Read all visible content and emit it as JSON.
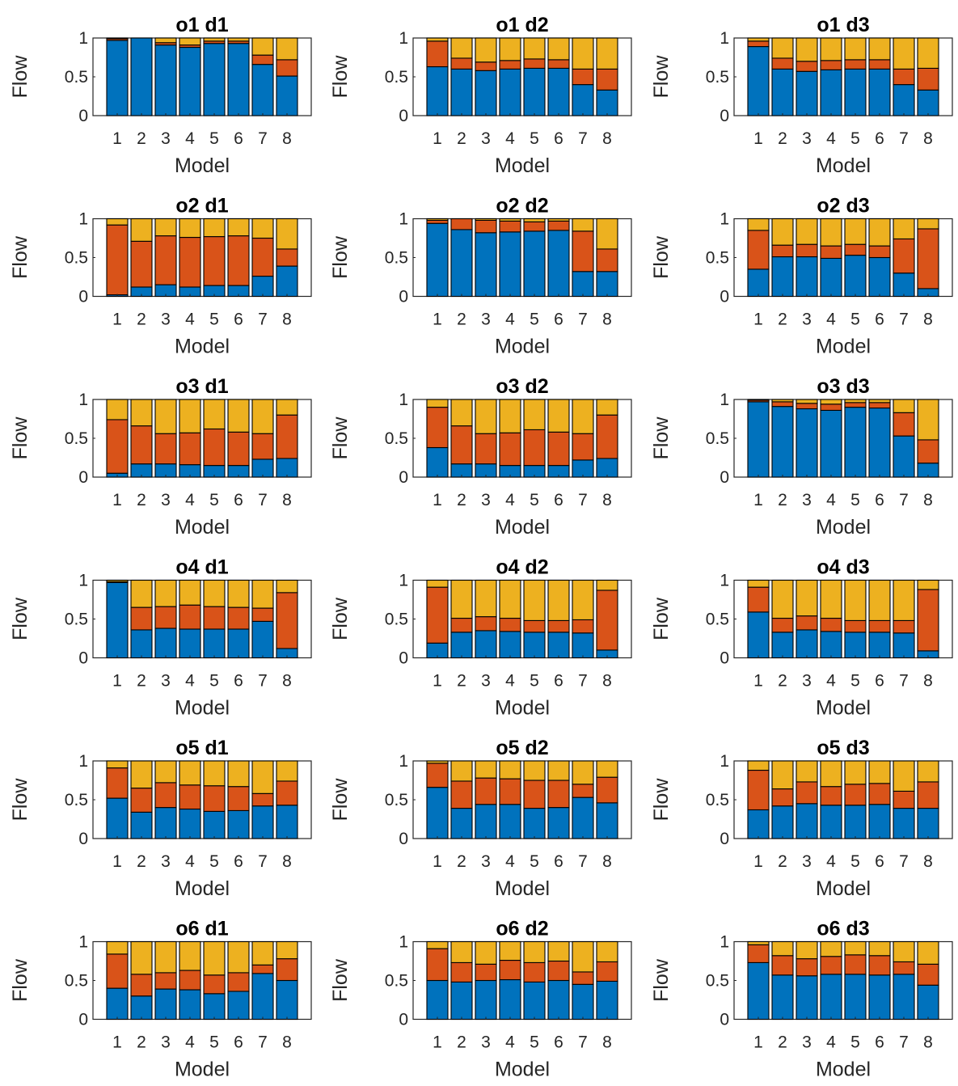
{
  "colors": {
    "blue": "#0072BD",
    "orange": "#D95319",
    "yellow": "#EDB120",
    "axis": "#262626"
  },
  "chart_data": [
    {
      "type": "bar",
      "stacked": true,
      "title": "o1 d1",
      "xlabel": "Model",
      "ylabel": "Flow",
      "categories": [
        "1",
        "2",
        "3",
        "4",
        "5",
        "6",
        "7",
        "8"
      ],
      "ylim": [
        0,
        1
      ],
      "yticks": [
        "0",
        "0.5",
        "1"
      ],
      "series": [
        {
          "values": [
            0.97,
            1.0,
            0.91,
            0.88,
            0.93,
            0.93,
            0.66,
            0.51
          ]
        },
        {
          "values": [
            0.02,
            0.0,
            0.03,
            0.03,
            0.03,
            0.03,
            0.12,
            0.21
          ]
        },
        {
          "values": [
            0.01,
            0.0,
            0.06,
            0.09,
            0.04,
            0.04,
            0.22,
            0.28
          ]
        }
      ]
    },
    {
      "type": "bar",
      "stacked": true,
      "title": "o1 d2",
      "xlabel": "Model",
      "ylabel": "Flow",
      "categories": [
        "1",
        "2",
        "3",
        "4",
        "5",
        "6",
        "7",
        "8"
      ],
      "ylim": [
        0,
        1
      ],
      "yticks": [
        "0",
        "0.5",
        "1"
      ],
      "series": [
        {
          "values": [
            0.63,
            0.6,
            0.58,
            0.6,
            0.61,
            0.61,
            0.4,
            0.33
          ]
        },
        {
          "values": [
            0.33,
            0.14,
            0.11,
            0.11,
            0.12,
            0.11,
            0.2,
            0.27
          ]
        },
        {
          "values": [
            0.04,
            0.26,
            0.31,
            0.29,
            0.27,
            0.28,
            0.4,
            0.4
          ]
        }
      ]
    },
    {
      "type": "bar",
      "stacked": true,
      "title": "o1 d3",
      "xlabel": "Model",
      "ylabel": "Flow",
      "categories": [
        "1",
        "2",
        "3",
        "4",
        "5",
        "6",
        "7",
        "8"
      ],
      "ylim": [
        0,
        1
      ],
      "yticks": [
        "0",
        "0.5",
        "1"
      ],
      "series": [
        {
          "values": [
            0.89,
            0.6,
            0.57,
            0.59,
            0.6,
            0.6,
            0.4,
            0.33
          ]
        },
        {
          "values": [
            0.07,
            0.14,
            0.13,
            0.12,
            0.12,
            0.12,
            0.2,
            0.28
          ]
        },
        {
          "values": [
            0.04,
            0.26,
            0.3,
            0.29,
            0.28,
            0.28,
            0.4,
            0.39
          ]
        }
      ]
    },
    {
      "type": "bar",
      "stacked": true,
      "title": "o2 d1",
      "xlabel": "Model",
      "ylabel": "Flow",
      "categories": [
        "1",
        "2",
        "3",
        "4",
        "5",
        "6",
        "7",
        "8"
      ],
      "ylim": [
        0,
        1
      ],
      "yticks": [
        "0",
        "0.5",
        "1"
      ],
      "series": [
        {
          "values": [
            0.02,
            0.12,
            0.15,
            0.12,
            0.14,
            0.14,
            0.26,
            0.39
          ]
        },
        {
          "values": [
            0.9,
            0.59,
            0.63,
            0.64,
            0.63,
            0.64,
            0.49,
            0.22
          ]
        },
        {
          "values": [
            0.08,
            0.29,
            0.22,
            0.24,
            0.23,
            0.22,
            0.25,
            0.39
          ]
        }
      ]
    },
    {
      "type": "bar",
      "stacked": true,
      "title": "o2 d2",
      "xlabel": "Model",
      "ylabel": "Flow",
      "categories": [
        "1",
        "2",
        "3",
        "4",
        "5",
        "6",
        "7",
        "8"
      ],
      "ylim": [
        0,
        1
      ],
      "yticks": [
        "0",
        "0.5",
        "1"
      ],
      "series": [
        {
          "values": [
            0.94,
            0.86,
            0.82,
            0.83,
            0.84,
            0.85,
            0.32,
            0.32
          ]
        },
        {
          "values": [
            0.04,
            0.14,
            0.16,
            0.14,
            0.12,
            0.12,
            0.52,
            0.29
          ]
        },
        {
          "values": [
            0.02,
            0.0,
            0.02,
            0.03,
            0.04,
            0.03,
            0.16,
            0.39
          ]
        }
      ]
    },
    {
      "type": "bar",
      "stacked": true,
      "title": "o2 d3",
      "xlabel": "Model",
      "ylabel": "Flow",
      "categories": [
        "1",
        "2",
        "3",
        "4",
        "5",
        "6",
        "7",
        "8"
      ],
      "ylim": [
        0,
        1
      ],
      "yticks": [
        "0",
        "0.5",
        "1"
      ],
      "series": [
        {
          "values": [
            0.35,
            0.51,
            0.51,
            0.49,
            0.53,
            0.5,
            0.3,
            0.1
          ]
        },
        {
          "values": [
            0.5,
            0.15,
            0.16,
            0.16,
            0.14,
            0.15,
            0.44,
            0.77
          ]
        },
        {
          "values": [
            0.15,
            0.34,
            0.33,
            0.35,
            0.33,
            0.35,
            0.26,
            0.13
          ]
        }
      ]
    },
    {
      "type": "bar",
      "stacked": true,
      "title": "o3 d1",
      "xlabel": "Model",
      "ylabel": "Flow",
      "categories": [
        "1",
        "2",
        "3",
        "4",
        "5",
        "6",
        "7",
        "8"
      ],
      "ylim": [
        0,
        1
      ],
      "yticks": [
        "0",
        "0.5",
        "1"
      ],
      "series": [
        {
          "values": [
            0.05,
            0.17,
            0.17,
            0.16,
            0.15,
            0.15,
            0.23,
            0.24
          ]
        },
        {
          "values": [
            0.69,
            0.49,
            0.39,
            0.41,
            0.47,
            0.43,
            0.33,
            0.56
          ]
        },
        {
          "values": [
            0.26,
            0.34,
            0.44,
            0.43,
            0.38,
            0.42,
            0.44,
            0.2
          ]
        }
      ]
    },
    {
      "type": "bar",
      "stacked": true,
      "title": "o3 d2",
      "xlabel": "Model",
      "ylabel": "Flow",
      "categories": [
        "1",
        "2",
        "3",
        "4",
        "5",
        "6",
        "7",
        "8"
      ],
      "ylim": [
        0,
        1
      ],
      "yticks": [
        "0",
        "0.5",
        "1"
      ],
      "series": [
        {
          "values": [
            0.38,
            0.17,
            0.17,
            0.15,
            0.15,
            0.15,
            0.22,
            0.24
          ]
        },
        {
          "values": [
            0.52,
            0.49,
            0.39,
            0.42,
            0.46,
            0.43,
            0.34,
            0.56
          ]
        },
        {
          "values": [
            0.1,
            0.34,
            0.44,
            0.43,
            0.39,
            0.42,
            0.44,
            0.2
          ]
        }
      ]
    },
    {
      "type": "bar",
      "stacked": true,
      "title": "o3 d3",
      "xlabel": "Model",
      "ylabel": "Flow",
      "categories": [
        "1",
        "2",
        "3",
        "4",
        "5",
        "6",
        "7",
        "8"
      ],
      "ylim": [
        0,
        1
      ],
      "yticks": [
        "0",
        "0.5",
        "1"
      ],
      "series": [
        {
          "values": [
            0.97,
            0.91,
            0.88,
            0.86,
            0.9,
            0.89,
            0.53,
            0.18
          ]
        },
        {
          "values": [
            0.02,
            0.06,
            0.07,
            0.08,
            0.06,
            0.07,
            0.3,
            0.3
          ]
        },
        {
          "values": [
            0.01,
            0.03,
            0.05,
            0.06,
            0.04,
            0.04,
            0.17,
            0.52
          ]
        }
      ]
    },
    {
      "type": "bar",
      "stacked": true,
      "title": "o4 d1",
      "xlabel": "Model",
      "ylabel": "Flow",
      "categories": [
        "1",
        "2",
        "3",
        "4",
        "5",
        "6",
        "7",
        "8"
      ],
      "ylim": [
        0,
        1
      ],
      "yticks": [
        "0",
        "0.5",
        "1"
      ],
      "series": [
        {
          "values": [
            0.97,
            0.36,
            0.38,
            0.37,
            0.37,
            0.37,
            0.47,
            0.12
          ]
        },
        {
          "values": [
            0.01,
            0.29,
            0.28,
            0.31,
            0.29,
            0.28,
            0.17,
            0.72
          ]
        },
        {
          "values": [
            0.02,
            0.35,
            0.34,
            0.32,
            0.34,
            0.35,
            0.36,
            0.16
          ]
        }
      ]
    },
    {
      "type": "bar",
      "stacked": true,
      "title": "o4 d2",
      "xlabel": "Model",
      "ylabel": "Flow",
      "categories": [
        "1",
        "2",
        "3",
        "4",
        "5",
        "6",
        "7",
        "8"
      ],
      "ylim": [
        0,
        1
      ],
      "yticks": [
        "0",
        "0.5",
        "1"
      ],
      "series": [
        {
          "values": [
            0.19,
            0.33,
            0.35,
            0.34,
            0.33,
            0.33,
            0.32,
            0.1
          ]
        },
        {
          "values": [
            0.72,
            0.18,
            0.18,
            0.17,
            0.15,
            0.15,
            0.17,
            0.77
          ]
        },
        {
          "values": [
            0.09,
            0.49,
            0.47,
            0.49,
            0.52,
            0.52,
            0.51,
            0.13
          ]
        }
      ]
    },
    {
      "type": "bar",
      "stacked": true,
      "title": "o4 d3",
      "xlabel": "Model",
      "ylabel": "Flow",
      "categories": [
        "1",
        "2",
        "3",
        "4",
        "5",
        "6",
        "7",
        "8"
      ],
      "ylim": [
        0,
        1
      ],
      "yticks": [
        "0",
        "0.5",
        "1"
      ],
      "series": [
        {
          "values": [
            0.59,
            0.33,
            0.36,
            0.34,
            0.33,
            0.33,
            0.32,
            0.09
          ]
        },
        {
          "values": [
            0.32,
            0.18,
            0.18,
            0.17,
            0.15,
            0.15,
            0.16,
            0.79
          ]
        },
        {
          "values": [
            0.09,
            0.49,
            0.46,
            0.49,
            0.52,
            0.52,
            0.52,
            0.12
          ]
        }
      ]
    },
    {
      "type": "bar",
      "stacked": true,
      "title": "o5 d1",
      "xlabel": "Model",
      "ylabel": "Flow",
      "categories": [
        "1",
        "2",
        "3",
        "4",
        "5",
        "6",
        "7",
        "8"
      ],
      "ylim": [
        0,
        1
      ],
      "yticks": [
        "0",
        "0.5",
        "1"
      ],
      "series": [
        {
          "values": [
            0.52,
            0.34,
            0.4,
            0.38,
            0.35,
            0.36,
            0.42,
            0.43
          ]
        },
        {
          "values": [
            0.39,
            0.31,
            0.32,
            0.31,
            0.33,
            0.31,
            0.16,
            0.31
          ]
        },
        {
          "values": [
            0.09,
            0.35,
            0.28,
            0.31,
            0.32,
            0.33,
            0.42,
            0.26
          ]
        }
      ]
    },
    {
      "type": "bar",
      "stacked": true,
      "title": "o5 d2",
      "xlabel": "Model",
      "ylabel": "Flow",
      "categories": [
        "1",
        "2",
        "3",
        "4",
        "5",
        "6",
        "7",
        "8"
      ],
      "ylim": [
        0,
        1
      ],
      "yticks": [
        "0",
        "0.5",
        "1"
      ],
      "series": [
        {
          "values": [
            0.66,
            0.39,
            0.44,
            0.44,
            0.39,
            0.4,
            0.53,
            0.46
          ]
        },
        {
          "values": [
            0.31,
            0.35,
            0.34,
            0.33,
            0.36,
            0.35,
            0.17,
            0.33
          ]
        },
        {
          "values": [
            0.03,
            0.26,
            0.22,
            0.23,
            0.25,
            0.25,
            0.3,
            0.21
          ]
        }
      ]
    },
    {
      "type": "bar",
      "stacked": true,
      "title": "o5 d3",
      "xlabel": "Model",
      "ylabel": "Flow",
      "categories": [
        "1",
        "2",
        "3",
        "4",
        "5",
        "6",
        "7",
        "8"
      ],
      "ylim": [
        0,
        1
      ],
      "yticks": [
        "0",
        "0.5",
        "1"
      ],
      "series": [
        {
          "values": [
            0.37,
            0.42,
            0.45,
            0.43,
            0.43,
            0.44,
            0.39,
            0.39
          ]
        },
        {
          "values": [
            0.51,
            0.22,
            0.28,
            0.24,
            0.27,
            0.27,
            0.22,
            0.34
          ]
        },
        {
          "values": [
            0.12,
            0.36,
            0.27,
            0.33,
            0.3,
            0.29,
            0.39,
            0.27
          ]
        }
      ]
    },
    {
      "type": "bar",
      "stacked": true,
      "title": "o6 d1",
      "xlabel": "Model",
      "ylabel": "Flow",
      "categories": [
        "1",
        "2",
        "3",
        "4",
        "5",
        "6",
        "7",
        "8"
      ],
      "ylim": [
        0,
        1
      ],
      "yticks": [
        "0",
        "0.5",
        "1"
      ],
      "series": [
        {
          "values": [
            0.4,
            0.3,
            0.39,
            0.38,
            0.33,
            0.36,
            0.59,
            0.5
          ]
        },
        {
          "values": [
            0.44,
            0.28,
            0.21,
            0.25,
            0.24,
            0.24,
            0.11,
            0.28
          ]
        },
        {
          "values": [
            0.16,
            0.42,
            0.4,
            0.37,
            0.43,
            0.4,
            0.3,
            0.22
          ]
        }
      ]
    },
    {
      "type": "bar",
      "stacked": true,
      "title": "o6 d2",
      "xlabel": "Model",
      "ylabel": "Flow",
      "categories": [
        "1",
        "2",
        "3",
        "4",
        "5",
        "6",
        "7",
        "8"
      ],
      "ylim": [
        0,
        1
      ],
      "yticks": [
        "0",
        "0.5",
        "1"
      ],
      "series": [
        {
          "values": [
            0.5,
            0.48,
            0.5,
            0.51,
            0.48,
            0.5,
            0.45,
            0.49
          ]
        },
        {
          "values": [
            0.41,
            0.25,
            0.21,
            0.25,
            0.25,
            0.25,
            0.16,
            0.25
          ]
        },
        {
          "values": [
            0.09,
            0.27,
            0.29,
            0.24,
            0.27,
            0.25,
            0.39,
            0.26
          ]
        }
      ]
    },
    {
      "type": "bar",
      "stacked": true,
      "title": "o6 d3",
      "xlabel": "Model",
      "ylabel": "Flow",
      "categories": [
        "1",
        "2",
        "3",
        "4",
        "5",
        "6",
        "7",
        "8"
      ],
      "ylim": [
        0,
        1
      ],
      "yticks": [
        "0",
        "0.5",
        "1"
      ],
      "series": [
        {
          "values": [
            0.73,
            0.57,
            0.56,
            0.58,
            0.58,
            0.57,
            0.58,
            0.44
          ]
        },
        {
          "values": [
            0.23,
            0.25,
            0.22,
            0.23,
            0.25,
            0.25,
            0.16,
            0.27
          ]
        },
        {
          "values": [
            0.04,
            0.18,
            0.22,
            0.19,
            0.17,
            0.18,
            0.26,
            0.29
          ]
        }
      ]
    }
  ]
}
